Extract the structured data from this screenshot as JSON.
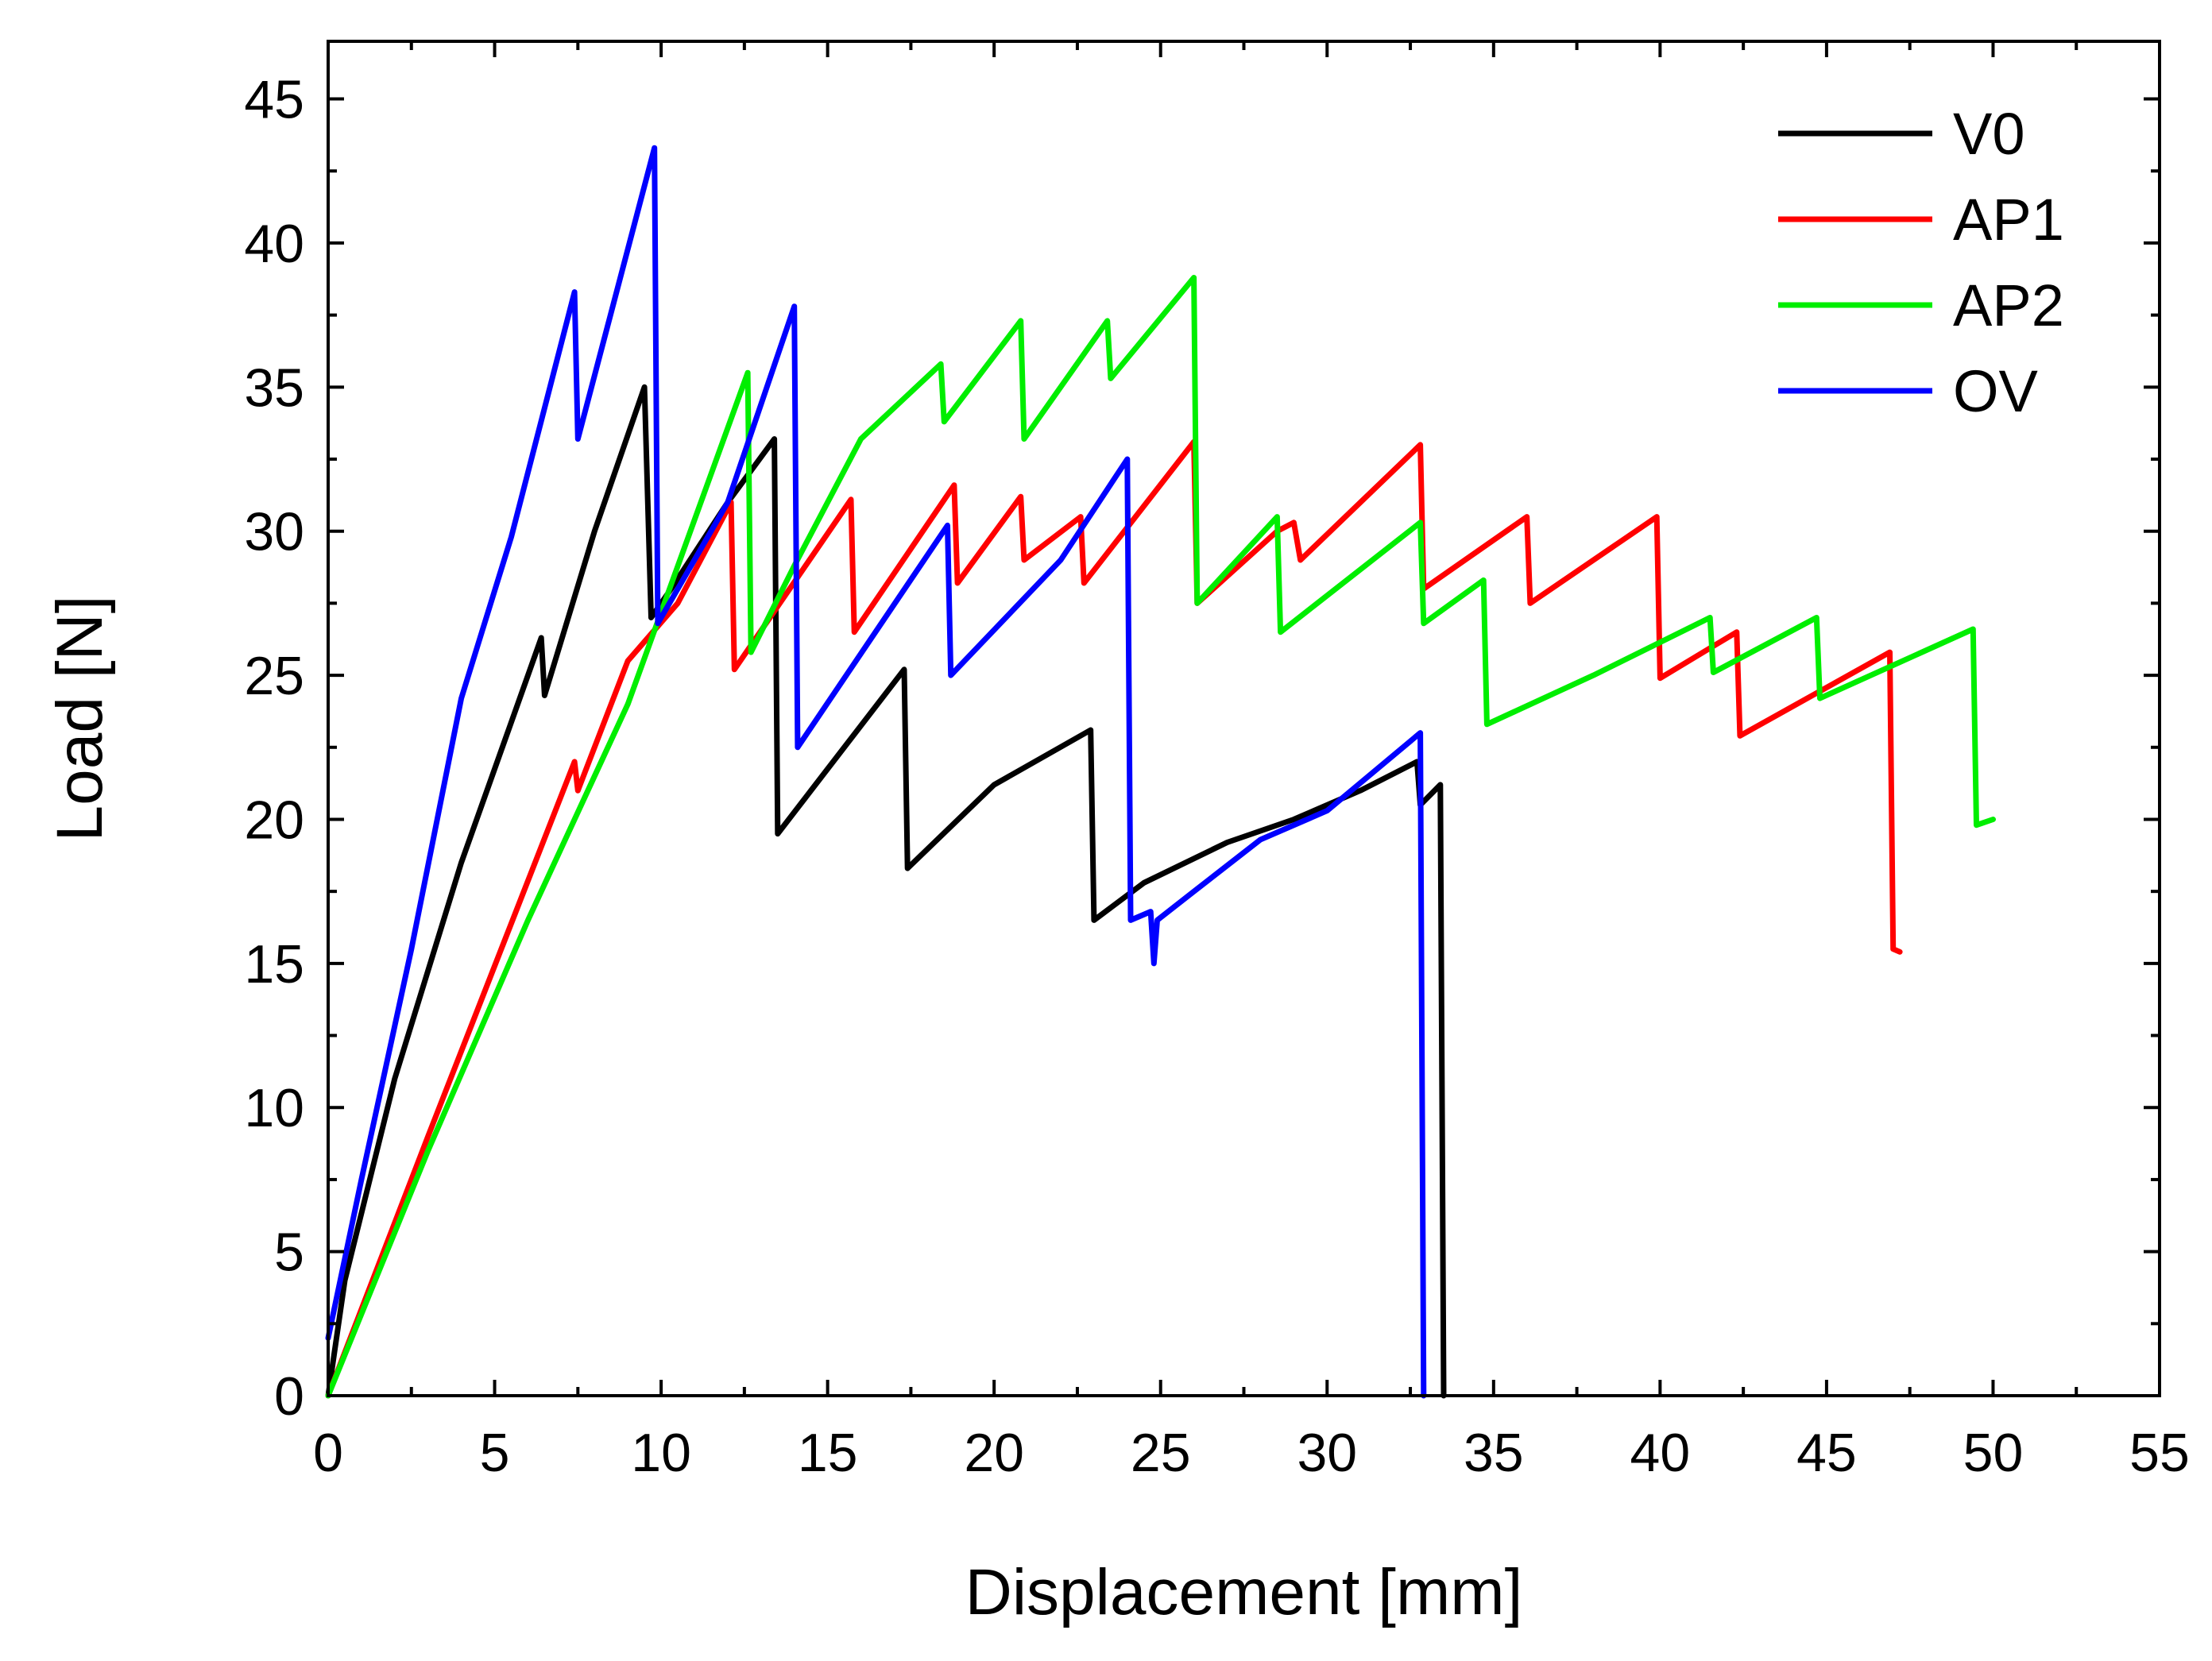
{
  "chart_data": {
    "type": "line",
    "title": "",
    "xlabel": "Displacement [mm]",
    "ylabel": "Load [N]",
    "xlim": [
      0,
      55
    ],
    "ylim": [
      0,
      47
    ],
    "xticks": [
      0,
      5,
      10,
      15,
      20,
      25,
      30,
      35,
      40,
      45,
      50,
      55
    ],
    "yticks": [
      0,
      5,
      10,
      15,
      20,
      25,
      30,
      35,
      40,
      45
    ],
    "grid": false,
    "legend_position": "top-right",
    "series": [
      {
        "name": "V0",
        "color": "#000000",
        "x": [
          0,
          0.5,
          2,
          4,
          6,
          6.4,
          6.5,
          8,
          9.5,
          9.7,
          10.3,
          12,
          13.4,
          13.5,
          17.3,
          17.4,
          20,
          22.9,
          23,
          24.5,
          27,
          29,
          31,
          32.7,
          32.8,
          33.4,
          33.5
        ],
        "y": [
          0,
          4,
          11,
          18.5,
          25,
          26.3,
          24.3,
          30,
          35,
          27,
          28,
          31,
          33.2,
          19.5,
          25.2,
          18.3,
          21.2,
          23.1,
          16.5,
          17.8,
          19.2,
          20,
          21,
          22,
          20.5,
          21.2,
          0
        ]
      },
      {
        "name": "AP1",
        "color": "#ff0000",
        "x": [
          0,
          3,
          7.4,
          7.5,
          9,
          10.5,
          12.1,
          12.2,
          15.7,
          15.8,
          18.8,
          18.9,
          20.8,
          20.9,
          22.6,
          22.7,
          26,
          26.1,
          28.5,
          29,
          29.2,
          32.8,
          32.9,
          36,
          36.1,
          39.9,
          40,
          42.3,
          42.4,
          46.9,
          47,
          47.2
        ],
        "y": [
          0,
          9,
          22,
          21,
          25.5,
          27.5,
          31,
          25.2,
          31.1,
          26.5,
          31.6,
          28.2,
          31.2,
          29,
          30.5,
          28.2,
          33.1,
          27.5,
          30,
          30.3,
          29,
          33,
          28,
          30.5,
          27.5,
          30.5,
          24.9,
          26.5,
          22.9,
          25.8,
          15.5,
          15.4
        ]
      },
      {
        "name": "AP2",
        "color": "#00ee00",
        "x": [
          0,
          3,
          6,
          9,
          12.6,
          12.7,
          14,
          16,
          18.4,
          18.5,
          20.8,
          20.9,
          23.4,
          23.5,
          26,
          26.1,
          28.5,
          28.6,
          32.8,
          32.9,
          34.7,
          34.8,
          38,
          41.5,
          41.6,
          44.7,
          44.8,
          49.4,
          49.5,
          50
        ],
        "y": [
          0,
          8.5,
          16.5,
          24,
          35.5,
          25.8,
          28.8,
          33.2,
          35.8,
          33.8,
          37.3,
          33.2,
          37.3,
          35.3,
          38.8,
          27.5,
          30.5,
          26.5,
          30.3,
          26.8,
          28.3,
          23.3,
          25,
          27,
          25.1,
          27,
          24.2,
          26.6,
          19.8,
          20
        ]
      },
      {
        "name": "OV",
        "color": "#0000ff",
        "x": [
          0,
          1,
          2.5,
          4,
          5.5,
          7.4,
          7.5,
          9.8,
          9.9,
          12,
          14,
          14.1,
          18.6,
          18.7,
          22,
          24,
          24.1,
          24.7,
          24.8,
          24.9,
          26,
          28,
          30,
          32.8,
          32.9
        ],
        "y": [
          2,
          7.5,
          15.5,
          24.2,
          29.8,
          38.3,
          33.2,
          43.3,
          26.8,
          31,
          37.8,
          22.5,
          30.2,
          25,
          29,
          32.5,
          16.5,
          16.8,
          15,
          16.5,
          17.5,
          19.3,
          20.3,
          23,
          0
        ]
      }
    ]
  }
}
